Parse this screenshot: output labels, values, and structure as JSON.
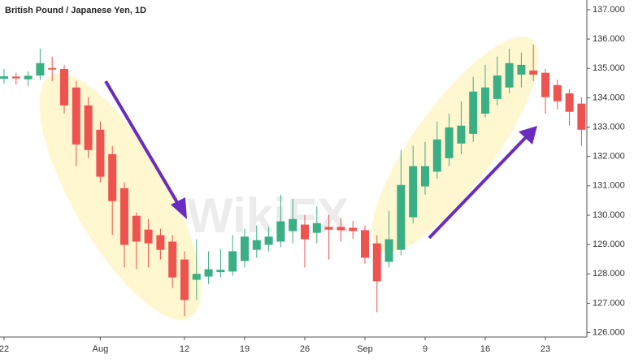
{
  "chart_data": {
    "type": "candlestick",
    "title": "British Pound / Japanese Yen, 1D",
    "watermark": "WikiFX",
    "categories": [
      "22",
      null,
      null,
      null,
      null,
      null,
      null,
      null,
      "Aug",
      null,
      null,
      null,
      null,
      null,
      null,
      "12",
      null,
      null,
      null,
      null,
      "19",
      null,
      null,
      null,
      null,
      "26",
      null,
      null,
      null,
      null,
      "Sep",
      null,
      null,
      null,
      null,
      "9",
      null,
      null,
      null,
      null,
      "16",
      null,
      null,
      null,
      null,
      "23",
      null,
      null,
      null
    ],
    "open": [
      134.65,
      134.72,
      134.63,
      134.76,
      135.01,
      134.98,
      134.35,
      133.74,
      132.91,
      132.08,
      130.92,
      129.98,
      129.51,
      129.32,
      129.1,
      128.49,
      127.8,
      127.91,
      128.06,
      128.08,
      128.44,
      128.82,
      128.99,
      129.1,
      129.46,
      129.68,
      129.4,
      129.6,
      129.6,
      129.57,
      129.49,
      129.04,
      128.41,
      128.82,
      129.93,
      130.98,
      131.48,
      131.94,
      132.44,
      132.77,
      133.46,
      133.96,
      134.35,
      134.79,
      134.93,
      134.85,
      134.43,
      134.15,
      133.8
    ],
    "high": [
      134.98,
      134.85,
      134.9,
      135.67,
      135.4,
      135.12,
      134.57,
      134.02,
      133.19,
      132.36,
      131.12,
      130.09,
      129.87,
      129.54,
      129.32,
      128.77,
      129.18,
      128.77,
      128.85,
      129.32,
      129.54,
      129.65,
      129.6,
      130.7,
      130.56,
      130.01,
      130.29,
      130.01,
      129.9,
      129.8,
      129.65,
      129.32,
      130.15,
      132.22,
      132.36,
      132.5,
      133.19,
      133.46,
      133.88,
      134.71,
      135.12,
      135.4,
      135.67,
      135.54,
      135.81,
      134.98,
      134.62,
      134.29,
      134.02
    ],
    "low": [
      134.49,
      134.45,
      134.4,
      134.62,
      134.57,
      133.46,
      131.67,
      131.94,
      131.12,
      129.32,
      128.22,
      128.16,
      128.22,
      128.49,
      127.52,
      126.56,
      127.11,
      127.66,
      127.88,
      127.94,
      128.22,
      128.55,
      128.77,
      128.91,
      129.04,
      128.22,
      129.04,
      128.49,
      129.1,
      129.2,
      128.35,
      126.7,
      128.22,
      128.63,
      129.73,
      130.7,
      131.25,
      131.67,
      132.08,
      132.5,
      133.33,
      133.74,
      134.15,
      134.35,
      134.57,
      133.46,
      133.6,
      133.05,
      132.36
    ],
    "close": [
      134.73,
      134.66,
      134.75,
      135.18,
      134.96,
      133.74,
      132.41,
      132.22,
      131.31,
      130.48,
      128.99,
      129.1,
      129.04,
      128.82,
      127.88,
      127.11,
      128.0,
      128.16,
      128.14,
      128.77,
      129.27,
      129.15,
      129.27,
      129.79,
      129.87,
      129.18,
      129.73,
      129.51,
      129.49,
      129.46,
      128.55,
      127.75,
      129.18,
      131.03,
      131.67,
      131.67,
      132.58,
      132.99,
      133.05,
      134.21,
      134.35,
      134.76,
      135.18,
      135.12,
      134.79,
      134.02,
      133.88,
      133.52,
      132.91
    ],
    "up_color": "#3aae84",
    "down_color": "#ef5350",
    "ylim": [
      125.85,
      137.33
    ],
    "yticks": [
      {
        "value": 126,
        "label": "126.000"
      },
      {
        "value": 127,
        "label": "127.000"
      },
      {
        "value": 128,
        "label": "128.000"
      },
      {
        "value": 129,
        "label": "129.000"
      },
      {
        "value": 130,
        "label": "130.000"
      },
      {
        "value": 131,
        "label": "131.000"
      },
      {
        "value": 132,
        "label": "132.000"
      },
      {
        "value": 133,
        "label": "133.000"
      },
      {
        "value": 134,
        "label": "134.000"
      },
      {
        "value": 135,
        "label": "135.000"
      },
      {
        "value": 136,
        "label": "136.000"
      },
      {
        "value": 137,
        "label": "137.000"
      }
    ]
  }
}
